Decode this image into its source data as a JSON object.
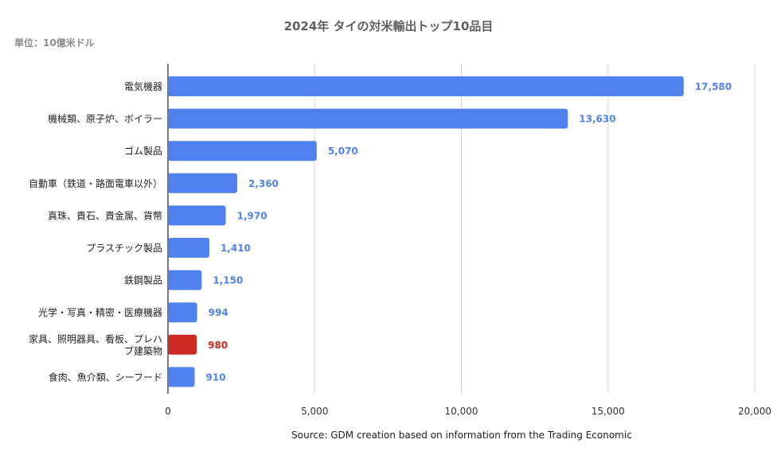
{
  "chart_data": {
    "type": "bar",
    "orientation": "horizontal",
    "title": "2024年 タイの対米輸出トップ10品目",
    "unit_label": "単位：10億米ドル",
    "source": "Source: GDM creation based on information from the Trading Economic",
    "categories": [
      "電気機器",
      "機械類、原子炉、ボイラー",
      "ゴム製品",
      "自動車（鉄道・路面電車以外）",
      "真珠、貴石、貴金属、貨幣",
      "プラスチック製品",
      "鉄鋼製品",
      "光学・写真・精密・医療機器",
      "家具、照明器具、看板、プレハブ建築物",
      "食肉、魚介類、シーフード"
    ],
    "values": [
      17580,
      13630,
      5070,
      2360,
      1970,
      1410,
      1150,
      994,
      980,
      910
    ],
    "value_labels": [
      "17,580",
      "13,630",
      "5,070",
      "2,360",
      "1,970",
      "1,410",
      "1,150",
      "994",
      "980",
      "910"
    ],
    "highlight_index": 8,
    "xlim": [
      0,
      20000
    ],
    "xticks": [
      0,
      5000,
      10000,
      15000,
      20000
    ],
    "xtick_labels": [
      "0",
      "5,000",
      "10,000",
      "15,000",
      "20,000"
    ],
    "grid": true,
    "legend": "none",
    "colors": {
      "bar": "#4f82ee",
      "highlight": "#cc2a22",
      "label": "#4f82ee",
      "highlight_label": "#cc2a22",
      "grid": "#d8d8d8",
      "axis": "#222222"
    }
  }
}
